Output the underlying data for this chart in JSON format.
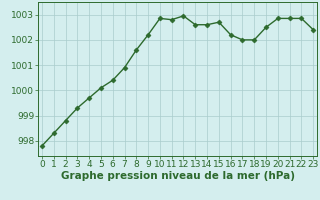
{
  "x": [
    0,
    1,
    2,
    3,
    4,
    5,
    6,
    7,
    8,
    9,
    10,
    11,
    12,
    13,
    14,
    15,
    16,
    17,
    18,
    19,
    20,
    21,
    22,
    23
  ],
  "y": [
    997.8,
    998.3,
    998.8,
    999.3,
    999.7,
    1000.1,
    1000.4,
    1000.9,
    1001.6,
    1002.2,
    1002.85,
    1002.8,
    1002.95,
    1002.6,
    1002.6,
    1002.7,
    1002.2,
    1002.0,
    1002.0,
    1002.5,
    1002.85,
    1002.85,
    1002.85,
    1002.4
  ],
  "line_color": "#2d6a2d",
  "marker": "D",
  "marker_size": 2.5,
  "background_color": "#d4eeee",
  "grid_color": "#aacccc",
  "xlabel": "Graphe pression niveau de la mer (hPa)",
  "xlabel_fontsize": 7.5,
  "ytick_labels": [
    "998",
    "999",
    "1000",
    "1001",
    "1002",
    "1003"
  ],
  "ytick_vals": [
    998,
    999,
    1000,
    1001,
    1002,
    1003
  ],
  "xticks": [
    0,
    1,
    2,
    3,
    4,
    5,
    6,
    7,
    8,
    9,
    10,
    11,
    12,
    13,
    14,
    15,
    16,
    17,
    18,
    19,
    20,
    21,
    22,
    23
  ],
  "ylim": [
    997.4,
    1003.5
  ],
  "xlim": [
    -0.3,
    23.3
  ],
  "tick_fontsize": 6.5,
  "spine_color": "#2d6a2d",
  "line_width": 1.0
}
